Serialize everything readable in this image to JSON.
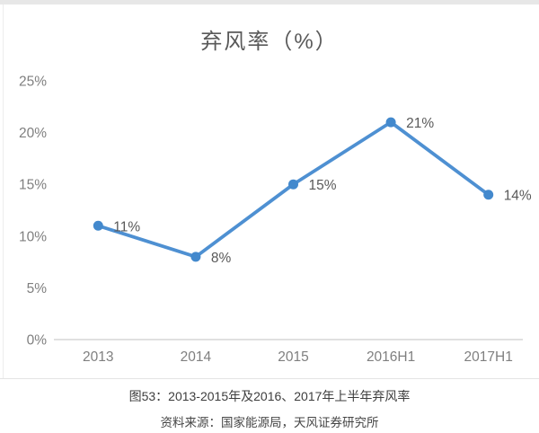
{
  "page": {
    "title": "弃风率（%）",
    "caption_line1": "图53：2013-2015年及2016、2017年上半年弃风率",
    "caption_line2": "资料来源：国家能源局，天风证券研究所"
  },
  "colors": {
    "line": "#4e90d2",
    "marker": "#4389cd",
    "axis_line": "#d6d6d6",
    "axis_text": "#7f7f7f",
    "data_label": "#595959",
    "title_text": "#595959"
  },
  "chart_data": {
    "type": "line",
    "title": "弃风率（%）",
    "categories": [
      "2013",
      "2014",
      "2015",
      "2016H1",
      "2017H1"
    ],
    "values": [
      11,
      8,
      15,
      21,
      14
    ],
    "data_labels": [
      "11%",
      "8%",
      "15%",
      "21%",
      "14%"
    ],
    "y_ticks": [
      {
        "label": "25%",
        "value": 25
      },
      {
        "label": "20%",
        "value": 20
      },
      {
        "label": "15%",
        "value": 15
      },
      {
        "label": "10%",
        "value": 10
      },
      {
        "label": "5%",
        "value": 5
      },
      {
        "label": "0%",
        "value": 0
      }
    ],
    "ylim": [
      0,
      25
    ],
    "grid": false,
    "legend": "none"
  }
}
